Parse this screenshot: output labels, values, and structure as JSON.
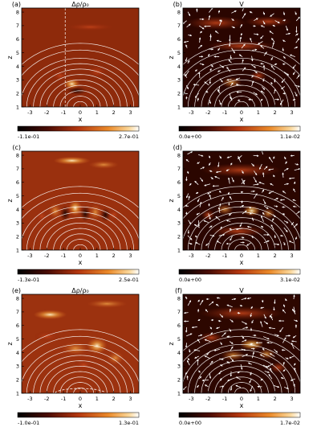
{
  "figure": {
    "panels": [
      {
        "label": "(a)",
        "title": "Δρ/ρ₀",
        "quantity": "density",
        "cb_min": "-1.1e-01",
        "cb_max": "2.7e-01",
        "colormap": "heat",
        "dashed": "vertical"
      },
      {
        "label": "(b)",
        "title": "V",
        "quantity": "velocity",
        "cb_min": "0.0e+00",
        "cb_max": "1.1e-02",
        "colormap": "heat",
        "arrows": true
      },
      {
        "label": "(c)",
        "title": "",
        "quantity": "density",
        "cb_min": "-1.3e-01",
        "cb_max": "2.5e-01",
        "colormap": "heat",
        "dashed": "none"
      },
      {
        "label": "(d)",
        "title": "",
        "quantity": "velocity",
        "cb_min": "0.0e+00",
        "cb_max": "3.1e-02",
        "colormap": "heat",
        "arrows": true
      },
      {
        "label": "(e)",
        "title": "Δρ/ρ₀",
        "quantity": "density",
        "cb_min": "-1.0e-01",
        "cb_max": "1.3e-01",
        "colormap": "heat",
        "dashed": "arc"
      },
      {
        "label": "(f)",
        "title": "V",
        "quantity": "velocity",
        "cb_min": "0.0e+00",
        "cb_max": "1.7e-02",
        "colormap": "heat",
        "arrows": true
      }
    ],
    "xlabel": "x",
    "ylabel": "z",
    "xticks": [
      "-3",
      "-2",
      "-1",
      "0",
      "1",
      "2",
      "3"
    ],
    "yticks": [
      "1",
      "2",
      "3",
      "4",
      "5",
      "6",
      "7",
      "8"
    ]
  },
  "chart_data": [
    {
      "type": "heatmap",
      "title": "Δρ/ρ₀",
      "xlabel": "x",
      "ylabel": "z",
      "xlim": [
        -3.5,
        3.5
      ],
      "ylim": [
        1,
        8.3
      ],
      "colorbar_range": [
        -0.11,
        0.27
      ]
    },
    {
      "type": "heatmap",
      "title": "V",
      "xlabel": "x",
      "ylabel": "z",
      "xlim": [
        -3.5,
        3.5
      ],
      "ylim": [
        1,
        8.3
      ],
      "colorbar_range": [
        0.0,
        0.011
      ]
    },
    {
      "type": "heatmap",
      "title": "",
      "xlabel": "x",
      "ylabel": "z",
      "xlim": [
        -3.5,
        3.5
      ],
      "ylim": [
        1,
        8.3
      ],
      "colorbar_range": [
        -0.13,
        0.25
      ]
    },
    {
      "type": "heatmap",
      "title": "",
      "xlabel": "x",
      "ylabel": "z",
      "xlim": [
        -3.5,
        3.5
      ],
      "ylim": [
        1,
        8.3
      ],
      "colorbar_range": [
        0.0,
        0.031
      ]
    },
    {
      "type": "heatmap",
      "title": "Δρ/ρ₀",
      "xlabel": "x",
      "ylabel": "z",
      "xlim": [
        -3.5,
        3.5
      ],
      "ylim": [
        1,
        8.3
      ],
      "colorbar_range": [
        -0.1,
        0.13
      ]
    },
    {
      "type": "heatmap",
      "title": "V",
      "xlabel": "x",
      "ylabel": "z",
      "xlim": [
        -3.5,
        3.5
      ],
      "ylim": [
        1,
        8.3
      ],
      "colorbar_range": [
        0.0,
        0.017
      ]
    }
  ]
}
